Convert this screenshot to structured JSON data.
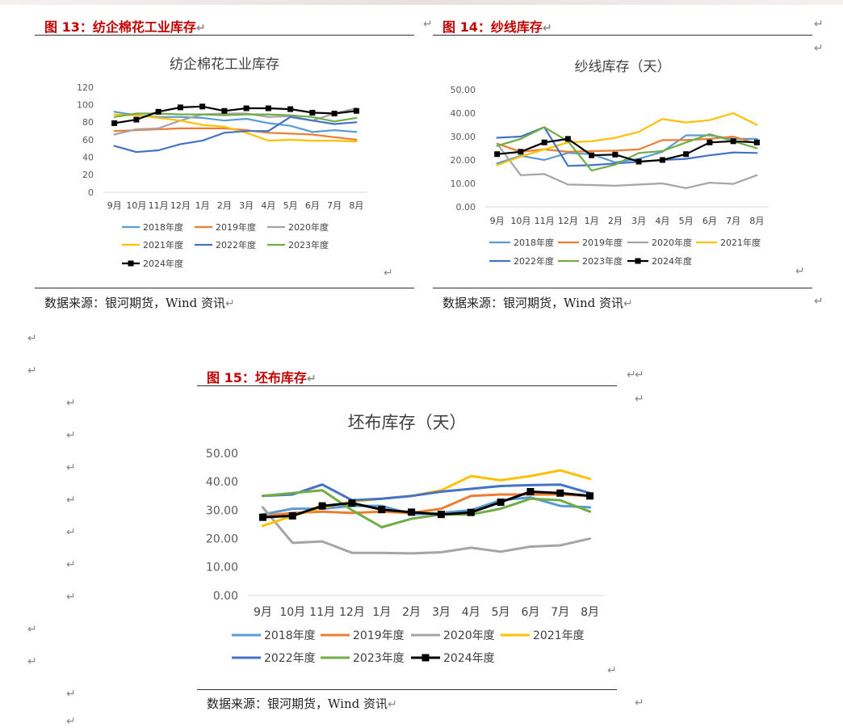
{
  "marker": "↵",
  "figures": [
    {
      "title": "图 13：纺企棉花工业库存",
      "source": "数据来源：银河期货，Wind 资讯"
    },
    {
      "title": "图 14：纱线库存",
      "source": "数据来源：银河期货，Wind 资讯"
    },
    {
      "title": "图 15：坯布库存",
      "source": "数据来源：银河期货，Wind 资讯"
    }
  ],
  "chart_data": [
    {
      "type": "line",
      "title": "纺企棉花工业库存",
      "categories": [
        "9月",
        "10月",
        "11月",
        "12月",
        "1月",
        "2月",
        "3月",
        "4月",
        "5月",
        "6月",
        "7月",
        "8月"
      ],
      "ylim": [
        0,
        120
      ],
      "yticks": [
        "0",
        "20",
        "40",
        "60",
        "80",
        "100",
        "120"
      ],
      "grid": false,
      "legend": "bottom",
      "series": [
        {
          "name": "2018年度",
          "color": "#5b9bd5",
          "values": [
            92,
            88,
            86,
            86,
            85,
            82,
            84,
            79,
            76,
            69,
            71,
            69
          ]
        },
        {
          "name": "2019年度",
          "color": "#ed7d31",
          "values": [
            70,
            71,
            72,
            73,
            73,
            73,
            71,
            68,
            67,
            66,
            63,
            60
          ]
        },
        {
          "name": "2020年度",
          "color": "#a5a5a5",
          "values": [
            66,
            72,
            73,
            82,
            89,
            90,
            90,
            86,
            87,
            82,
            90,
            96
          ]
        },
        {
          "name": "2021年度",
          "color": "#ffc000",
          "values": [
            89,
            88,
            85,
            82,
            77,
            75,
            68,
            59,
            60,
            59,
            59,
            58
          ]
        },
        {
          "name": "2022年度",
          "color": "#4472c4",
          "values": [
            53,
            46,
            48,
            55,
            59,
            68,
            70,
            70,
            86,
            82,
            78,
            80
          ]
        },
        {
          "name": "2023年度",
          "color": "#70ad47",
          "values": [
            86,
            90,
            90,
            89,
            89,
            88,
            89,
            89,
            88,
            86,
            81,
            85
          ]
        },
        {
          "name": "2024年度",
          "color": "#000000",
          "marker": true,
          "values": [
            79,
            83,
            92,
            97,
            98,
            93,
            96,
            96,
            95,
            91,
            90,
            93
          ]
        }
      ]
    },
    {
      "type": "line",
      "title": "纱线库存（天）",
      "categories": [
        "9月",
        "10月",
        "11月",
        "12月",
        "1月",
        "2月",
        "3月",
        "4月",
        "5月",
        "6月",
        "7月",
        "8月"
      ],
      "ylim": [
        0,
        50
      ],
      "yticks": [
        "0.00",
        "10.00",
        "20.00",
        "30.00",
        "40.00",
        "50.00"
      ],
      "grid": false,
      "legend": "bottom",
      "series": [
        {
          "name": "2018年度",
          "color": "#5b9bd5",
          "values": [
            18.5,
            21.8,
            20,
            23,
            22.5,
            19,
            20.5,
            23.5,
            30.5,
            30.5,
            29,
            29
          ]
        },
        {
          "name": "2019年度",
          "color": "#ed7d31",
          "values": [
            27,
            23.5,
            24.5,
            23.5,
            23.8,
            24,
            24.5,
            28.5,
            28.5,
            29,
            30,
            27
          ]
        },
        {
          "name": "2020年度",
          "color": "#a5a5a5",
          "values": [
            27,
            13.5,
            14,
            9.5,
            9.3,
            9,
            9.5,
            10,
            8,
            10.3,
            9.8,
            13.5
          ]
        },
        {
          "name": "2021年度",
          "color": "#ffc000",
          "values": [
            17.8,
            21.5,
            24.5,
            27.5,
            28,
            29.5,
            32,
            37.5,
            36,
            37,
            40,
            35
          ]
        },
        {
          "name": "2022年度",
          "color": "#4472c4",
          "values": [
            29.5,
            30,
            34,
            17.5,
            17.8,
            18.5,
            19.2,
            20,
            20.5,
            22,
            23.2,
            23
          ]
        },
        {
          "name": "2023年度",
          "color": "#70ad47",
          "values": [
            26,
            29,
            34,
            28,
            15.5,
            18,
            23,
            23.8,
            27.5,
            31,
            28,
            25
          ]
        },
        {
          "name": "2024年度",
          "color": "#000000",
          "marker": true,
          "values": [
            22.5,
            23.5,
            27.5,
            29,
            22,
            22.3,
            19.3,
            20,
            22.5,
            27.5,
            28,
            27.5
          ]
        }
      ]
    },
    {
      "type": "line",
      "title": "坯布库存（天）",
      "categories": [
        "9月",
        "10月",
        "11月",
        "12月",
        "1月",
        "2月",
        "3月",
        "4月",
        "5月",
        "6月",
        "7月",
        "8月"
      ],
      "ylim": [
        0,
        50
      ],
      "yticks": [
        "0.00",
        "10.00",
        "20.00",
        "30.00",
        "40.00",
        "50.00"
      ],
      "grid": false,
      "legend": "bottom",
      "series": [
        {
          "name": "2018年度",
          "color": "#5b9bd5",
          "values": [
            28.5,
            30.5,
            30.5,
            31.5,
            31.5,
            28.5,
            29,
            30,
            33.5,
            34.5,
            31.5,
            31
          ]
        },
        {
          "name": "2019年度",
          "color": "#ed7d31",
          "values": [
            28,
            29,
            29.5,
            29,
            29.5,
            29,
            30.5,
            35,
            35.5,
            35.5,
            35.5,
            35
          ]
        },
        {
          "name": "2020年度",
          "color": "#a5a5a5",
          "values": [
            31,
            18.5,
            19,
            15,
            15,
            14.8,
            15.2,
            16.8,
            15.4,
            17.2,
            17.6,
            20
          ]
        },
        {
          "name": "2021年度",
          "color": "#ffc000",
          "values": [
            24.5,
            28,
            31,
            33,
            34,
            35,
            37,
            42,
            40.5,
            42,
            44,
            41
          ]
        },
        {
          "name": "2022年度",
          "color": "#4472c4",
          "values": [
            35,
            35.5,
            39,
            33.5,
            34,
            35,
            36.5,
            37.5,
            38.5,
            38.8,
            39,
            36
          ]
        },
        {
          "name": "2023年度",
          "color": "#70ad47",
          "values": [
            35,
            36,
            37,
            30,
            24,
            27,
            28.5,
            28.5,
            30.5,
            34,
            33.5,
            29.5
          ]
        },
        {
          "name": "2024年度",
          "color": "#000000",
          "marker": true,
          "values": [
            27.5,
            28,
            31.5,
            32.5,
            30.2,
            29.3,
            28.5,
            29.2,
            32.8,
            36.5,
            36,
            35
          ]
        }
      ]
    }
  ]
}
